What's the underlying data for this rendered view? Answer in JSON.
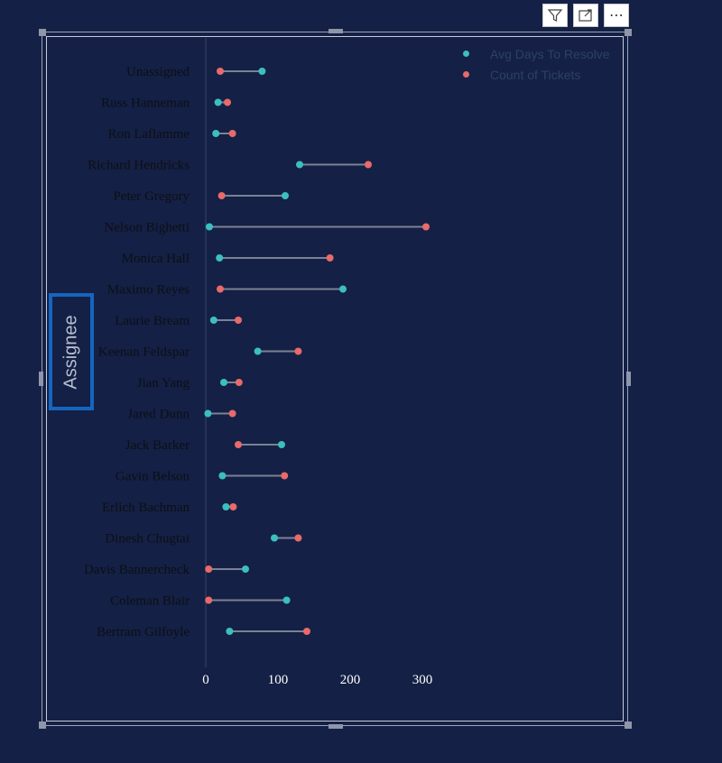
{
  "toolbar": {
    "filter_icon": "filter-icon",
    "focus_icon": "focus-mode-icon",
    "more_icon": "more-options-icon",
    "more_label": "⋯"
  },
  "axis_title_box": {
    "label": "Assignee"
  },
  "colors": {
    "background": "#142045",
    "avg_days": "#3bbfbf",
    "count_tickets": "#e86a6a",
    "connector": "#7a8294",
    "label_text": "#0d0f14",
    "tick_text": "#ffffff",
    "highlight_box": "#1565c0"
  },
  "chart_data": {
    "type": "dumbbell",
    "xlim": [
      0,
      300
    ],
    "xticks": [
      0,
      100,
      200,
      300
    ],
    "grid": false,
    "legend_position": "top-right",
    "categories": [
      "Unassigned",
      "Russ Hanneman",
      "Ron Laflamme",
      "Richard Hendricks",
      "Peter Gregory",
      "Nelson Bighetti",
      "Monica Hall",
      "Maximo Reyes",
      "Laurie Bream",
      "Keenan Feldspar",
      "Jian Yang",
      "Jared Dunn",
      "Jack Barker",
      "Gavin Belson",
      "Erlich Bachman",
      "Dinesh Chugtai",
      "Davis Bannercheck",
      "Coleman Blair",
      "Bertram Gilfoyle"
    ],
    "series": [
      {
        "name": "Avg Days To Resolve",
        "color": "#3bbfbf",
        "values": [
          78,
          17,
          14,
          130,
          110,
          5,
          19,
          190,
          11,
          72,
          25,
          3,
          105,
          23,
          28,
          95,
          55,
          112,
          33
        ]
      },
      {
        "name": "Count of Tickets",
        "color": "#e86a6a",
        "values": [
          20,
          30,
          37,
          225,
          22,
          305,
          172,
          20,
          45,
          128,
          46,
          37,
          45,
          109,
          38,
          128,
          4,
          4,
          140
        ]
      }
    ]
  }
}
